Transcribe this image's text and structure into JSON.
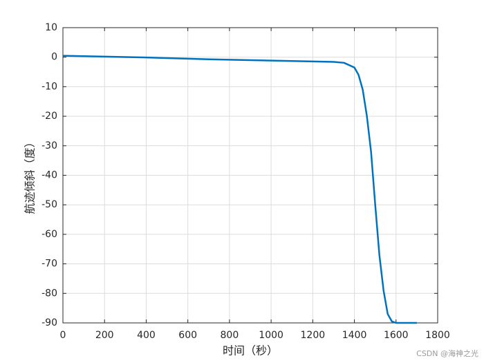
{
  "chart_data": {
    "type": "line",
    "xlabel": "时间（秒）",
    "ylabel": "航迹倾斜（度）",
    "x": [
      0,
      100,
      200,
      300,
      400,
      500,
      600,
      700,
      800,
      900,
      1000,
      1100,
      1200,
      1300,
      1350,
      1400,
      1420,
      1440,
      1460,
      1480,
      1500,
      1520,
      1540,
      1560,
      1580,
      1600,
      1650,
      1700
    ],
    "series": [
      {
        "color": "#0072bd",
        "values": [
          0.5,
          0.35,
          0.2,
          0.05,
          -0.1,
          -0.3,
          -0.5,
          -0.7,
          -0.85,
          -1.0,
          -1.15,
          -1.3,
          -1.45,
          -1.6,
          -1.9,
          -3.5,
          -6,
          -11,
          -20,
          -32,
          -50,
          -67,
          -79,
          -87,
          -89.5,
          -90,
          -90,
          -90
        ]
      }
    ],
    "xlim": [
      0,
      1800
    ],
    "xticks": [
      0,
      200,
      400,
      600,
      800,
      1000,
      1200,
      1400,
      1600,
      1800
    ],
    "ylim": [
      -90,
      10
    ],
    "yticks": [
      -90,
      -80,
      -70,
      -60,
      -50,
      -40,
      -30,
      -20,
      -10,
      0,
      10
    ],
    "grid": true
  },
  "watermark": "CSDN @海神之光"
}
